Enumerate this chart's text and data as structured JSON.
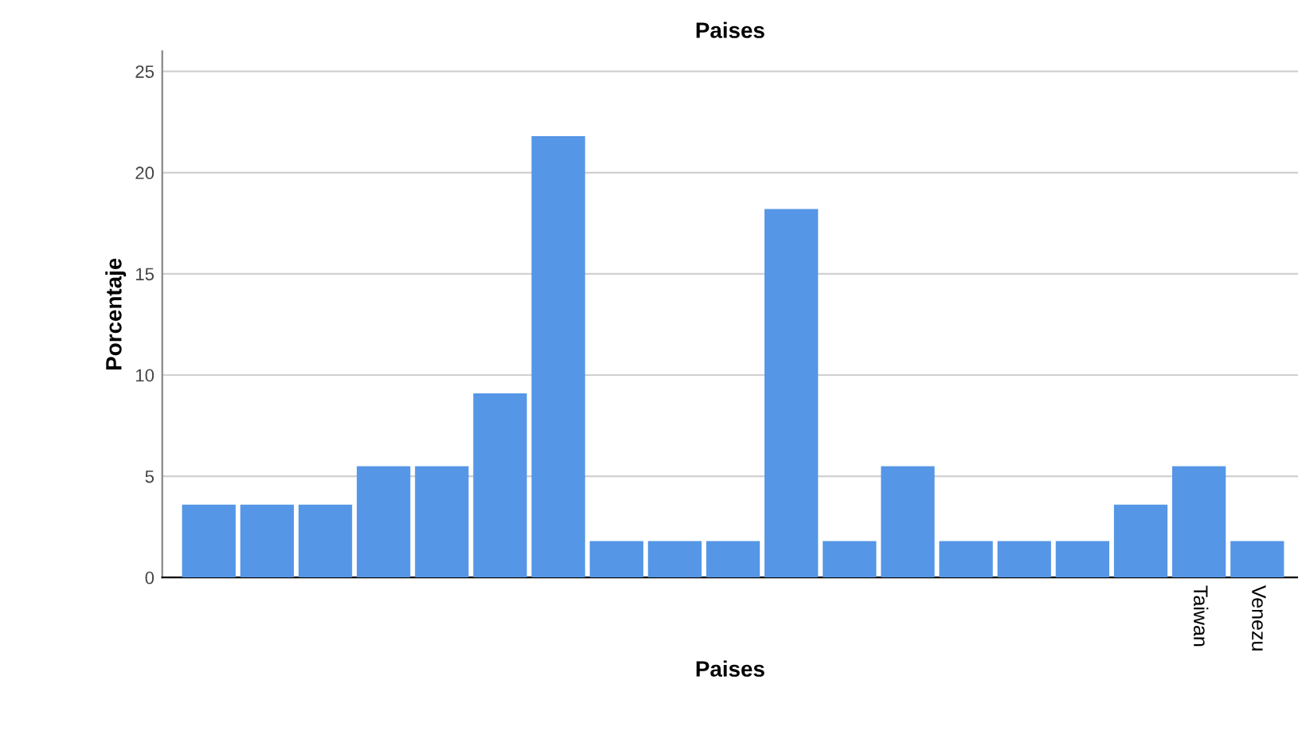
{
  "chart_data": {
    "type": "bar",
    "title": "Paises",
    "xlabel": "Paises",
    "ylabel": "Porcentaje",
    "categories": [
      null,
      null,
      null,
      null,
      null,
      null,
      null,
      null,
      null,
      null,
      null,
      null,
      null,
      null,
      null,
      null,
      null,
      "Taiwan",
      "Venezu"
    ],
    "values": [
      3.6,
      3.6,
      3.6,
      5.5,
      5.5,
      9.1,
      21.8,
      1.8,
      1.8,
      1.8,
      18.2,
      1.8,
      5.5,
      1.8,
      1.8,
      1.8,
      3.6,
      5.5,
      1.8
    ],
    "color": "#5596e6",
    "ylim": [
      0,
      26
    ],
    "yticks": [
      0,
      5,
      10,
      15,
      20,
      25
    ],
    "grid": "y"
  }
}
